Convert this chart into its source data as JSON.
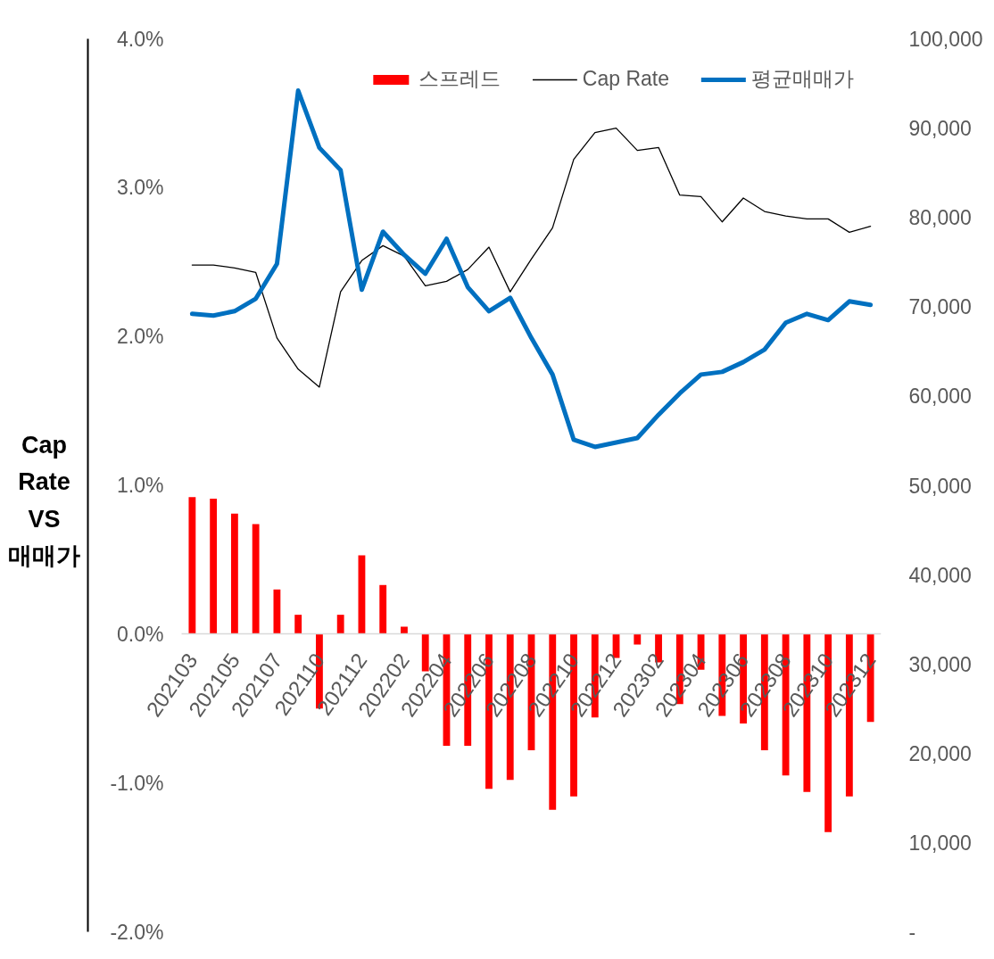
{
  "chart_data": {
    "type": "bar",
    "title": "Cap Rate VS 매매가",
    "categories": [
      "202103",
      null,
      "202105",
      null,
      "202107",
      null,
      "202110",
      null,
      "202112",
      null,
      "202202",
      null,
      "202204",
      null,
      "202206",
      null,
      "202208",
      null,
      "202210",
      null,
      "202212",
      null,
      "202302",
      null,
      "202304",
      null,
      "202306",
      null,
      "202308",
      null,
      "202310",
      null,
      "202312"
    ],
    "series": [
      {
        "name": "스프레드",
        "color": "#ff0000",
        "values": [
          0.92,
          0.91,
          0.81,
          0.74,
          0.3,
          0.13,
          -0.5,
          0.13,
          0.53,
          0.33,
          0.05,
          -0.25,
          -0.75,
          -0.75,
          -1.04,
          -0.98,
          -0.78,
          -1.18,
          -1.09,
          -0.56,
          -0.16,
          -0.07,
          -0.19,
          -0.47,
          -0.24,
          -0.55,
          -0.6,
          -0.78,
          -0.95,
          -1.06,
          -1.33,
          -1.09,
          -0.59
        ]
      },
      {
        "name": "Cap Rate",
        "type": "line",
        "color": "#000000",
        "values": [
          2.48,
          2.48,
          2.46,
          2.43,
          1.99,
          1.78,
          1.66,
          2.3,
          2.51,
          2.61,
          2.54,
          2.34,
          2.37,
          2.45,
          2.6,
          2.3,
          2.52,
          2.73,
          3.19,
          3.37,
          3.4,
          3.25,
          3.27,
          2.95,
          2.94,
          2.77,
          2.93,
          2.84,
          2.81,
          2.79,
          2.79,
          2.7,
          2.74
        ]
      },
      {
        "name": "평균매매가",
        "type": "line",
        "color": "#0070c0",
        "axis": "y2",
        "values": [
          69200,
          69000,
          69500,
          70900,
          74800,
          94200,
          87800,
          85300,
          71900,
          78400,
          75800,
          73700,
          77600,
          72200,
          69500,
          71000,
          66500,
          62400,
          55100,
          54300,
          54800,
          55300,
          57900,
          60300,
          62400,
          62700,
          63800,
          65200,
          68200,
          69200,
          68500,
          70600,
          70200
        ]
      }
    ],
    "ylim": [
      -2,
      4
    ],
    "yticks": [
      {
        "value": -2,
        "label": "-2.0%"
      },
      {
        "value": -1,
        "label": "-1.0%"
      },
      {
        "value": 0,
        "label": "0.0%"
      },
      {
        "value": 1,
        "label": "1.0%"
      },
      {
        "value": 2,
        "label": "2.0%"
      },
      {
        "value": 3,
        "label": "3.0%"
      },
      {
        "value": 4,
        "label": "4.0%"
      }
    ],
    "y2lim": [
      0,
      100000
    ],
    "y2ticks": [
      {
        "value": 0,
        "label": "-"
      },
      {
        "value": 10000,
        "label": "10,000"
      },
      {
        "value": 20000,
        "label": "20,000"
      },
      {
        "value": 30000,
        "label": "30,000"
      },
      {
        "value": 40000,
        "label": "40,000"
      },
      {
        "value": 50000,
        "label": "50,000"
      },
      {
        "value": 60000,
        "label": "60,000"
      },
      {
        "value": 70000,
        "label": "70,000"
      },
      {
        "value": 80000,
        "label": "80,000"
      },
      {
        "value": 90000,
        "label": "90,000"
      },
      {
        "value": 100000,
        "label": "100,000"
      }
    ],
    "grid": false,
    "legend": "top right"
  }
}
